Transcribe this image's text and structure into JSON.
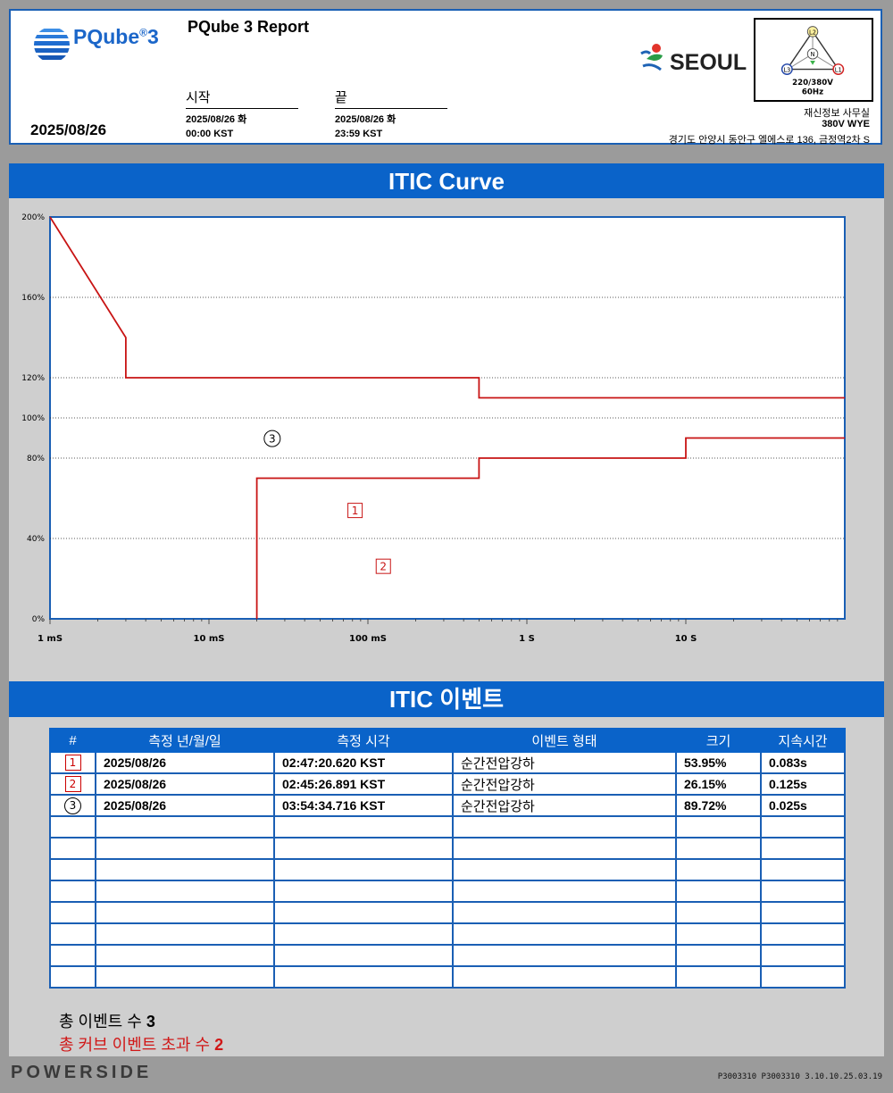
{
  "header": {
    "brand": "PQube",
    "brand_sup": "®",
    "brand_num": "3",
    "report_title": "PQube 3 Report",
    "report_date": "2025/08/26",
    "start": {
      "label": "시작",
      "date": "2025/08/26 화",
      "time": "00:00 KST"
    },
    "end": {
      "label": "끝",
      "date": "2025/08/26 화",
      "time": "23:59 KST"
    },
    "partner_logo": "SEOUL",
    "wiring": {
      "labels": [
        "L2",
        "N",
        "L3",
        "L1"
      ],
      "voltage": "220/380V",
      "frequency": "60Hz"
    },
    "site": {
      "name": "재신정보 사무실",
      "config": "380V WYE",
      "address": "경기도 안양시 동안구 엘에스로 136, 금정역2차 S"
    }
  },
  "chart_section": {
    "title": "ITIC Curve"
  },
  "chart_data": {
    "type": "line",
    "title": "ITIC Curve",
    "xscale": "log",
    "xlim": [
      0.001,
      100
    ],
    "ylim": [
      0,
      200
    ],
    "y_ticks": [
      {
        "value": 0,
        "label": "0%"
      },
      {
        "value": 40,
        "label": "40%"
      },
      {
        "value": 80,
        "label": "80%"
      },
      {
        "value": 100,
        "label": "100%"
      },
      {
        "value": 120,
        "label": "120%"
      },
      {
        "value": 160,
        "label": "160%"
      },
      {
        "value": 200,
        "label": "200%"
      }
    ],
    "x_ticks": [
      {
        "value": 0.001,
        "label": "1 mS"
      },
      {
        "value": 0.01,
        "label": "10 mS"
      },
      {
        "value": 0.1,
        "label": "100 mS"
      },
      {
        "value": 1,
        "label": "1 S"
      },
      {
        "value": 10,
        "label": "10 S"
      }
    ],
    "grid": true,
    "curves": [
      {
        "color": "#c81414",
        "points": [
          [
            0.001,
            200
          ],
          [
            0.003,
            140
          ],
          [
            0.003,
            120
          ],
          [
            0.5,
            120
          ],
          [
            0.5,
            110
          ],
          [
            100,
            110
          ]
        ]
      },
      {
        "color": "#c81414",
        "points": [
          [
            0.02,
            0
          ],
          [
            0.02,
            70
          ],
          [
            0.5,
            70
          ],
          [
            0.5,
            80
          ],
          [
            10,
            80
          ],
          [
            10,
            90
          ],
          [
            100,
            90
          ]
        ]
      }
    ],
    "events": [
      {
        "id": "1",
        "marker": "box",
        "x": 0.083,
        "y": 53.95
      },
      {
        "id": "2",
        "marker": "box",
        "x": 0.125,
        "y": 26.15
      },
      {
        "id": "3",
        "marker": "circle",
        "x": 0.025,
        "y": 89.72
      }
    ]
  },
  "events_section": {
    "title": "ITIC 이벤트",
    "columns": [
      "#",
      "측정 년/월/일",
      "측정 시각",
      "이벤트 형태",
      "크기",
      "지속시간"
    ],
    "rows": [
      {
        "id": "1",
        "marker": "box",
        "date": "2025/08/26",
        "time": "02:47:20.620 KST",
        "type": "순간전압강하",
        "magnitude": "53.95%",
        "duration": "0.083s"
      },
      {
        "id": "2",
        "marker": "box",
        "date": "2025/08/26",
        "time": "02:45:26.891 KST",
        "type": "순간전압강하",
        "magnitude": "26.15%",
        "duration": "0.125s"
      },
      {
        "id": "3",
        "marker": "circle",
        "date": "2025/08/26",
        "time": "03:54:34.716 KST",
        "type": "순간전압강하",
        "magnitude": "89.72%",
        "duration": "0.025s"
      }
    ],
    "empty_rows": 8,
    "total_events_label": "총 이벤트 수",
    "total_events": "3",
    "total_curve_label": "총 커브 이벤트 초과 수",
    "total_curve": "2"
  },
  "footer": {
    "logo": "POWERSIDE",
    "id": "P3003310  P3003310  3.10.10.25.03.19"
  },
  "colors": {
    "accent": "#0a63c9",
    "curve": "#c81414",
    "panel": "#cfcfcf"
  }
}
